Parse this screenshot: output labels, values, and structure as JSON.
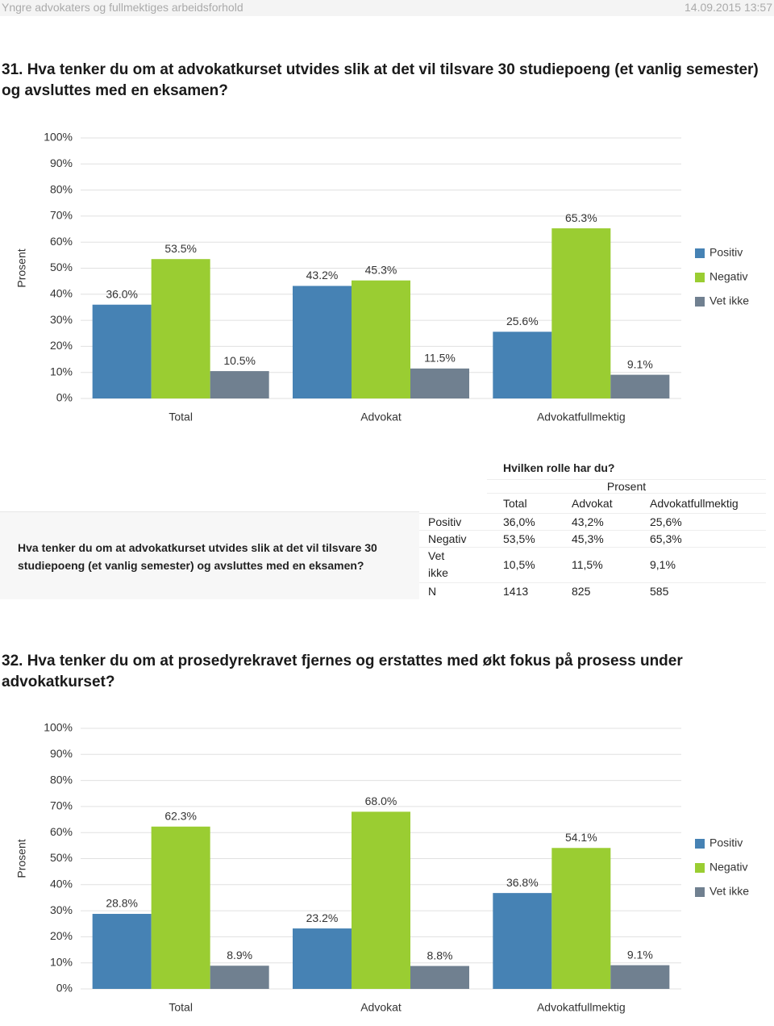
{
  "header": {
    "title": "Yngre advokaters og fullmektiges arbeidsforhold",
    "date": "14.09.2015 13:57"
  },
  "questions": [
    "31. Hva tenker du om at advokatkurset utvides slik at det vil tilsvare 30 studiepoeng (et vanlig semester) og avsluttes med en eksamen?",
    "32. Hva tenker du om at prosedyrekravet fjernes og erstattes med økt fokus på prosess under advokatkurset?"
  ],
  "chart_data": [
    {
      "type": "bar",
      "y_label": "Prosent",
      "categories": [
        "Total",
        "Advokat",
        "Advokatfullmektig"
      ],
      "series": [
        {
          "name": "Positiv",
          "color": "#4682b4",
          "values": [
            36.0,
            43.2,
            25.6
          ],
          "value_labels": [
            "36.0%",
            "43.2%",
            "25.6%"
          ]
        },
        {
          "name": "Negativ",
          "color": "#9acd32",
          "values": [
            53.5,
            45.3,
            65.3
          ],
          "value_labels": [
            "53.5%",
            "45.3%",
            "65.3%"
          ]
        },
        {
          "name": "Vet ikke",
          "color": "#708090",
          "values": [
            10.5,
            11.5,
            9.1
          ],
          "value_labels": [
            "10.5%",
            "11.5%",
            "9.1%"
          ]
        }
      ],
      "ylim": [
        0,
        100
      ],
      "yticks": [
        {
          "value": 0,
          "label": "0%"
        },
        {
          "value": 10,
          "label": "10%"
        },
        {
          "value": 20,
          "label": "20%"
        },
        {
          "value": 30,
          "label": "30%"
        },
        {
          "value": 40,
          "label": "40%"
        },
        {
          "value": 50,
          "label": "50%"
        },
        {
          "value": 60,
          "label": "60%"
        },
        {
          "value": 70,
          "label": "70%"
        },
        {
          "value": 80,
          "label": "80%"
        },
        {
          "value": 90,
          "label": "90%"
        },
        {
          "value": 100,
          "label": "100%"
        }
      ],
      "grid": true,
      "legend": "right"
    },
    {
      "type": "bar",
      "y_label": "Prosent",
      "categories": [
        "Total",
        "Advokat",
        "Advokatfullmektig"
      ],
      "series": [
        {
          "name": "Positiv",
          "color": "#4682b4",
          "values": [
            28.8,
            23.2,
            36.8
          ],
          "value_labels": [
            "28.8%",
            "23.2%",
            "36.8%"
          ]
        },
        {
          "name": "Negativ",
          "color": "#9acd32",
          "values": [
            62.3,
            68.0,
            54.1
          ],
          "value_labels": [
            "62.3%",
            "68.0%",
            "54.1%"
          ]
        },
        {
          "name": "Vet ikke",
          "color": "#708090",
          "values": [
            8.9,
            8.8,
            9.1
          ],
          "value_labels": [
            "8.9%",
            "8.8%",
            "9.1%"
          ]
        }
      ],
      "ylim": [
        0,
        100
      ],
      "yticks": [
        {
          "value": 0,
          "label": "0%"
        },
        {
          "value": 10,
          "label": "10%"
        },
        {
          "value": 20,
          "label": "20%"
        },
        {
          "value": 30,
          "label": "30%"
        },
        {
          "value": 40,
          "label": "40%"
        },
        {
          "value": 50,
          "label": "50%"
        },
        {
          "value": 60,
          "label": "60%"
        },
        {
          "value": 70,
          "label": "70%"
        },
        {
          "value": 80,
          "label": "80%"
        },
        {
          "value": 90,
          "label": "90%"
        },
        {
          "value": 100,
          "label": "100%"
        }
      ],
      "grid": true,
      "legend": "right"
    }
  ],
  "table": {
    "question": "Hva tenker du om at advokatkurset utvides slik at det vil tilsvare 30 studiepoeng (et vanlig semester) og avsluttes med en eksamen?",
    "group_title": "Hvilken rolle har du?",
    "unit": "Prosent",
    "columns": [
      "Total",
      "Advokat",
      "Advokatfullmektig"
    ],
    "rows": [
      [
        "Positiv",
        "36,0%",
        "43,2%",
        "25,6%"
      ],
      [
        "Negativ",
        "53,5%",
        "45,3%",
        "65,3%"
      ],
      [
        "Vet ikke",
        "10,5%",
        "11,5%",
        "9,1%"
      ],
      [
        "N",
        "1413",
        "825",
        "585"
      ]
    ]
  }
}
